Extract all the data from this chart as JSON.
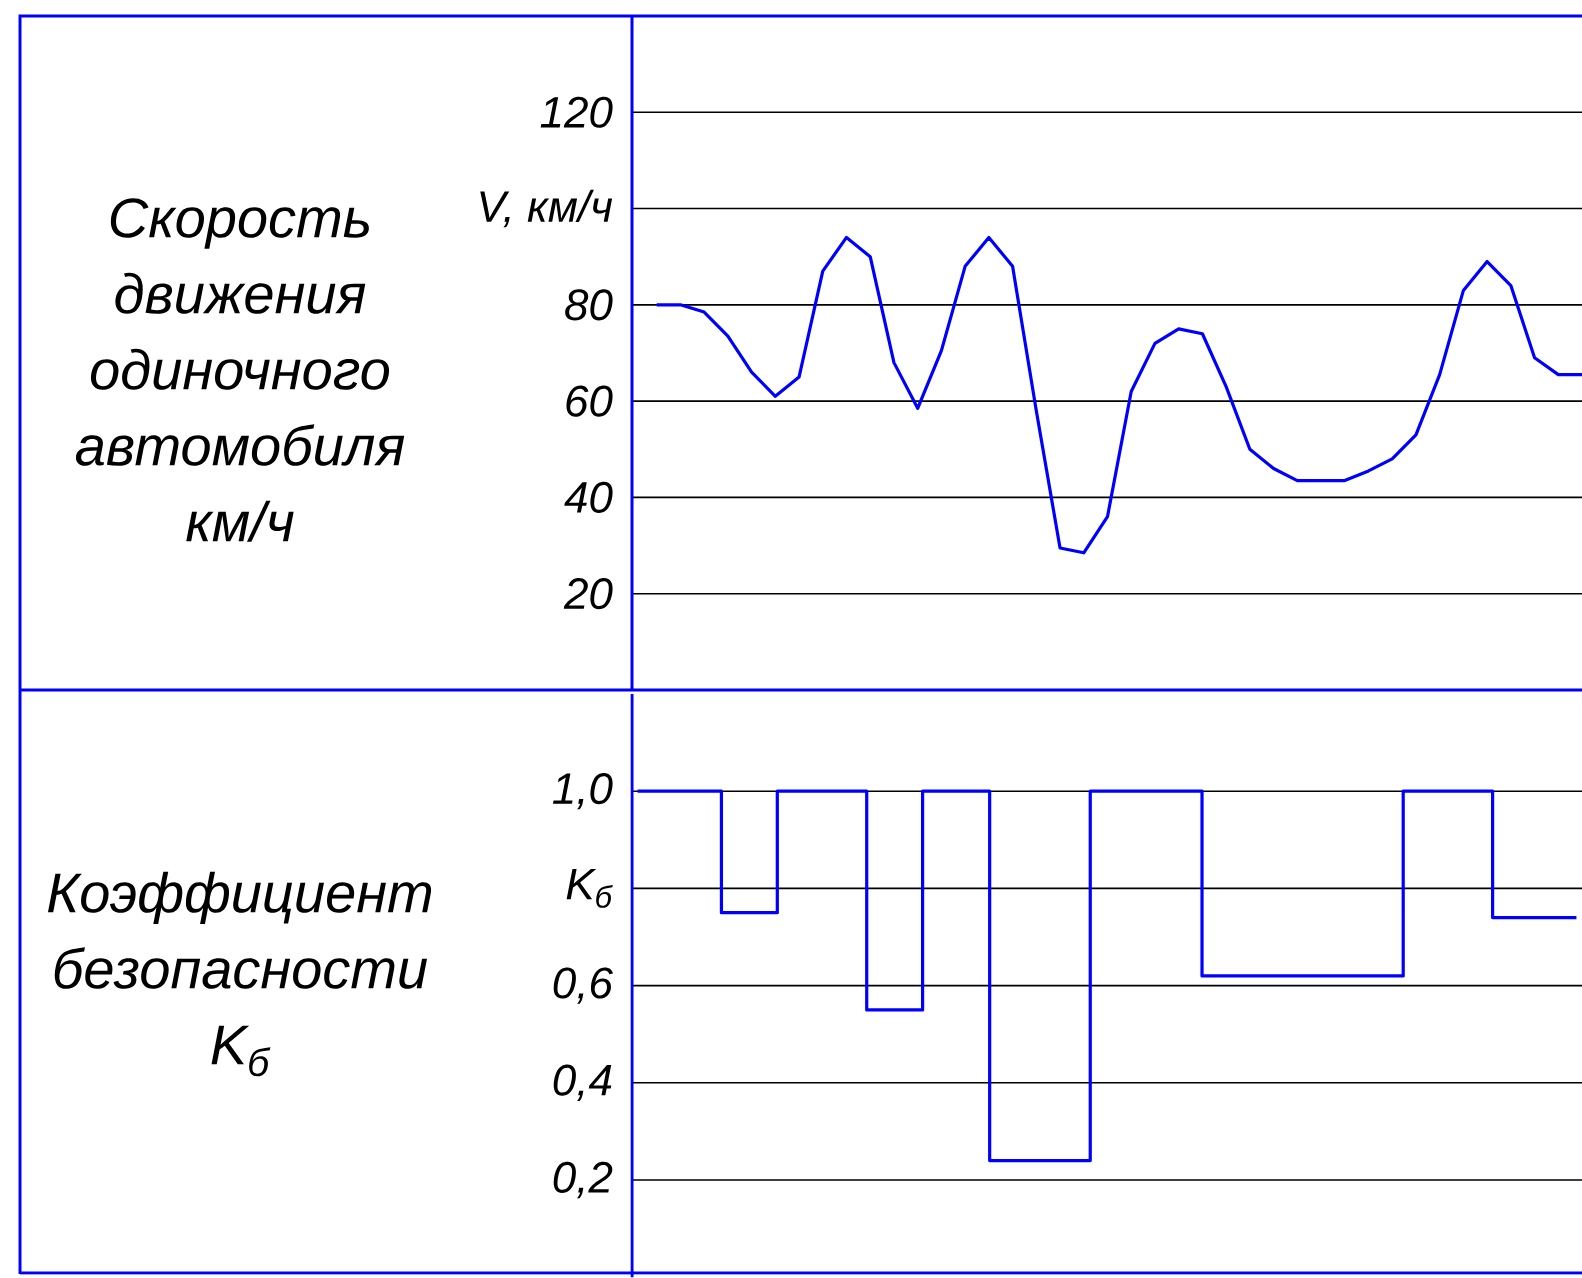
{
  "chart_data": [
    {
      "type": "line",
      "title": "Скорость движения одиночного автомобиля км/ч",
      "categories": [
        null,
        null,
        null,
        null,
        null,
        null,
        null,
        null,
        null,
        null,
        null,
        null,
        null,
        null,
        null,
        null,
        null,
        null,
        null,
        null,
        null,
        null,
        null,
        null,
        null,
        null,
        null,
        null,
        null,
        null,
        null,
        null,
        null,
        null,
        null,
        null,
        null,
        null,
        null,
        null
      ],
      "series": [
        {
          "color": "#0000ff",
          "values": [
            80,
            80,
            78.5,
            73.5,
            66,
            61,
            65,
            87,
            94,
            90,
            68,
            58.5,
            70.5,
            88,
            94,
            88,
            58,
            29.5,
            28.5,
            36,
            62,
            72,
            75,
            74,
            63,
            50,
            46,
            43.5,
            43.5,
            43.5,
            45.5,
            48,
            53,
            65.5,
            83,
            89,
            84,
            69,
            65.5,
            65.5
          ]
        }
      ],
      "ylim": [
        0,
        140
      ],
      "yticks": [
        {
          "value": 120,
          "label": "120"
        },
        {
          "value": 100,
          "label": "V, км/ч"
        },
        {
          "value": 80,
          "label": "80"
        },
        {
          "value": 60,
          "label": "60"
        },
        {
          "value": 40,
          "label": "40"
        },
        {
          "value": 20,
          "label": "20"
        }
      ],
      "grid": "y",
      "tick_labels": "y"
    },
    {
      "type": "step",
      "title": "Коэффициент безопасности K$_{б}$",
      "categories": [
        null,
        null,
        null,
        null,
        null,
        null,
        null,
        null,
        null,
        null,
        null,
        null,
        null,
        null,
        null,
        null,
        null,
        null,
        null,
        null,
        null,
        null,
        null,
        null,
        null,
        null,
        null,
        null,
        null,
        null,
        null,
        null,
        null,
        null,
        null,
        null,
        null,
        null,
        null,
        null,
        null,
        null,
        null,
        null,
        null,
        null,
        null,
        null,
        null,
        null,
        null,
        null,
        null,
        null,
        null,
        null,
        null,
        null,
        null,
        null,
        null,
        null,
        null,
        null,
        null,
        null,
        null,
        null,
        null,
        null,
        null,
        null,
        null,
        null,
        null,
        null,
        null,
        null,
        null,
        null,
        null,
        null,
        null,
        null,
        null
      ],
      "series": [
        {
          "color": "#0000ff",
          "values": [
            1.0,
            1.0,
            1.0,
            1.0,
            1.0,
            1.0,
            1.0,
            1.0,
            0.75,
            0.75,
            0.75,
            0.75,
            0.75,
            1.0,
            1.0,
            1.0,
            1.0,
            1.0,
            1.0,
            1.0,
            1.0,
            0.55,
            0.55,
            0.55,
            0.55,
            0.55,
            1.0,
            1.0,
            1.0,
            1.0,
            1.0,
            1.0,
            0.24,
            0.24,
            0.24,
            0.24,
            0.24,
            0.24,
            0.24,
            0.24,
            0.24,
            1.0,
            1.0,
            1.0,
            1.0,
            1.0,
            1.0,
            1.0,
            1.0,
            1.0,
            1.0,
            0.62,
            0.62,
            0.62,
            0.62,
            0.62,
            0.62,
            0.62,
            0.62,
            0.62,
            0.62,
            0.62,
            0.62,
            0.62,
            0.62,
            0.62,
            0.62,
            0.62,
            0.62,
            1.0,
            1.0,
            1.0,
            1.0,
            1.0,
            1.0,
            1.0,
            1.0,
            0.74,
            0.74,
            0.74,
            0.74,
            0.74,
            0.74,
            0.74,
            0.74
          ]
        }
      ],
      "ylim": [
        0,
        1.2
      ],
      "yticks": [
        {
          "value": 1.0,
          "label": "1,0"
        },
        {
          "value": 0.8,
          "label": "K$_{б}$"
        },
        {
          "value": 0.6,
          "label": "0,6"
        },
        {
          "value": 0.4,
          "label": "0,4"
        },
        {
          "value": 0.2,
          "label": "0,2"
        }
      ],
      "grid": "y",
      "tick_labels": "y"
    }
  ]
}
